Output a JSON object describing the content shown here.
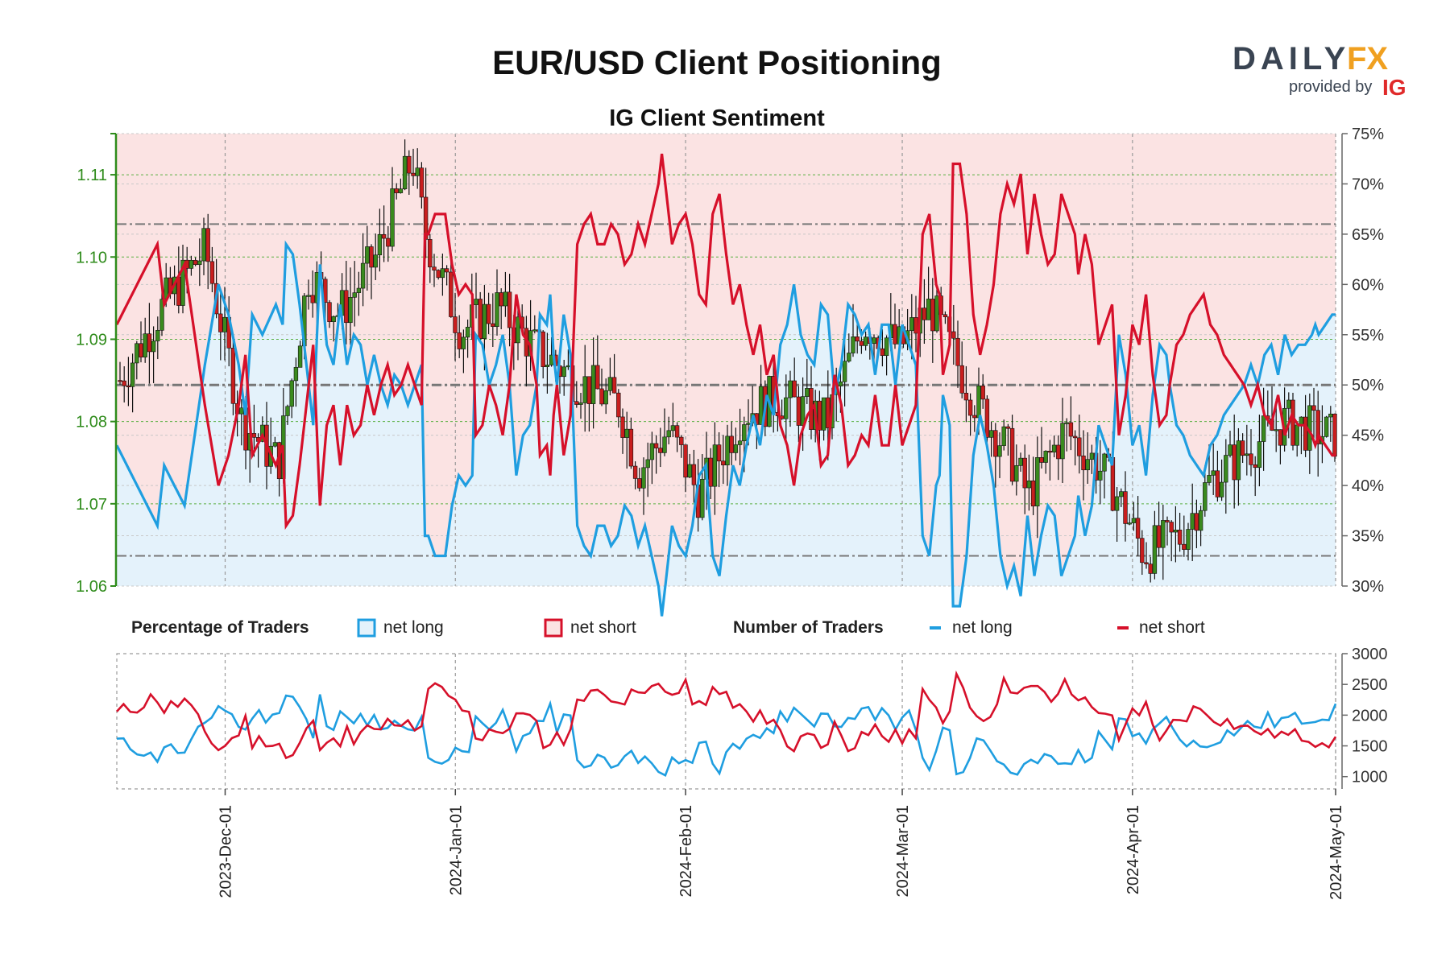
{
  "title": "EUR/USD Client Positioning",
  "subtitle": "IG Client Sentiment",
  "brand": {
    "logo_left": "DAILY",
    "logo_right": "FX",
    "provided_by": "provided by",
    "ig": "IG",
    "color_dark": "#3a4452",
    "color_accent": "#f0a020",
    "color_ig": "#e02a2a"
  },
  "legend": {
    "pct_title": "Percentage of Traders",
    "pct_long": "net long",
    "pct_short": "net short",
    "num_title": "Number of Traders",
    "num_long": "net long",
    "num_short": "net short"
  },
  "colors": {
    "long": "#1f9ee0",
    "short": "#d6102a",
    "long_fill": "#e4f2fb",
    "short_fill": "#fbe3e3",
    "bull": "#3a8a1e",
    "bear": "#c81e1e",
    "price_axis": "#2e8b1a",
    "grid": "#9a9a9a"
  },
  "chart_data": {
    "type": "candlestick+line",
    "x_ticks": [
      "2023-Dec-01",
      "2024-Jan-01",
      "2024-Feb-01",
      "2024-Mar-01",
      "2024-Apr-01",
      "2024-May-01"
    ],
    "price_axis": {
      "ticks": [
        "1.06",
        "1.07",
        "1.08",
        "1.09",
        "1.10",
        "1.11"
      ],
      "range": [
        1.06,
        1.115
      ]
    },
    "pct_axis": {
      "ticks": [
        "30%",
        "35%",
        "40%",
        "45%",
        "50%",
        "55%",
        "60%",
        "65%",
        "70%",
        "75%"
      ],
      "range": [
        30,
        75
      ]
    },
    "count_axis": {
      "ticks": [
        "1000",
        "1500",
        "2000",
        "2500",
        "3000"
      ],
      "range": [
        800,
        3000
      ]
    },
    "reference_lines_pct": [
      66,
      50,
      33
    ],
    "series": {
      "long_pct_nodes": [
        [
          0,
          44
        ],
        [
          12,
          36
        ],
        [
          14,
          42
        ],
        [
          20,
          38
        ],
        [
          26,
          52
        ],
        [
          30,
          60
        ],
        [
          33,
          57
        ],
        [
          36,
          52
        ],
        [
          38,
          47
        ],
        [
          40,
          57
        ],
        [
          43,
          55
        ],
        [
          47,
          58
        ],
        [
          49,
          56
        ],
        [
          50,
          64
        ],
        [
          52,
          63
        ],
        [
          54,
          58
        ],
        [
          56,
          52
        ],
        [
          58,
          46
        ],
        [
          60,
          62
        ],
        [
          62,
          54
        ],
        [
          64,
          52
        ],
        [
          66,
          58
        ],
        [
          68,
          52
        ],
        [
          70,
          55
        ],
        [
          72,
          54
        ],
        [
          74,
          50
        ],
        [
          76,
          53
        ],
        [
          78,
          50
        ],
        [
          80,
          48
        ],
        [
          82,
          51
        ],
        [
          84,
          50
        ],
        [
          86,
          48
        ],
        [
          88,
          50
        ],
        [
          90,
          52
        ],
        [
          91,
          35
        ],
        [
          92,
          35
        ],
        [
          94,
          33
        ],
        [
          97,
          33
        ],
        [
          99,
          38
        ],
        [
          101,
          41
        ],
        [
          103,
          40
        ],
        [
          105,
          41
        ],
        [
          106,
          55
        ],
        [
          108,
          54
        ],
        [
          110,
          50
        ],
        [
          112,
          52
        ],
        [
          114,
          55
        ],
        [
          116,
          50
        ],
        [
          118,
          41
        ],
        [
          120,
          45
        ],
        [
          122,
          46
        ],
        [
          124,
          50
        ],
        [
          125,
          57
        ],
        [
          127,
          56
        ],
        [
          128,
          59
        ],
        [
          129,
          53
        ],
        [
          130,
          50
        ],
        [
          132,
          57
        ],
        [
          134,
          53
        ],
        [
          136,
          36
        ],
        [
          138,
          34
        ],
        [
          140,
          33
        ],
        [
          142,
          36
        ],
        [
          144,
          36
        ],
        [
          146,
          34
        ],
        [
          148,
          35
        ],
        [
          150,
          38
        ],
        [
          152,
          37
        ],
        [
          154,
          34
        ],
        [
          156,
          36
        ],
        [
          158,
          33
        ],
        [
          160,
          30
        ],
        [
          161,
          27
        ],
        [
          164,
          36
        ],
        [
          166,
          34
        ],
        [
          168,
          33
        ],
        [
          170,
          36
        ],
        [
          172,
          41
        ],
        [
          174,
          42
        ],
        [
          176,
          33
        ],
        [
          178,
          31
        ],
        [
          180,
          37
        ],
        [
          182,
          42
        ],
        [
          184,
          40
        ],
        [
          186,
          44
        ],
        [
          188,
          47
        ],
        [
          190,
          44
        ],
        [
          192,
          49
        ],
        [
          194,
          47
        ],
        [
          196,
          54
        ],
        [
          198,
          56
        ],
        [
          200,
          60
        ],
        [
          202,
          55
        ],
        [
          204,
          53
        ],
        [
          206,
          52
        ],
        [
          208,
          58
        ],
        [
          210,
          57
        ],
        [
          212,
          49
        ],
        [
          214,
          52
        ],
        [
          216,
          58
        ],
        [
          218,
          57
        ],
        [
          220,
          55
        ],
        [
          222,
          56
        ],
        [
          224,
          51
        ],
        [
          226,
          56
        ],
        [
          228,
          56
        ],
        [
          230,
          50
        ],
        [
          232,
          56
        ],
        [
          234,
          54
        ],
        [
          236,
          52
        ],
        [
          238,
          35
        ],
        [
          240,
          33
        ],
        [
          242,
          40
        ],
        [
          243,
          41
        ],
        [
          244,
          49
        ],
        [
          246,
          46
        ],
        [
          247,
          28
        ],
        [
          249,
          28
        ],
        [
          251,
          33
        ],
        [
          253,
          43
        ],
        [
          255,
          47
        ],
        [
          257,
          44
        ],
        [
          259,
          40
        ],
        [
          261,
          33
        ],
        [
          263,
          30
        ],
        [
          265,
          32
        ],
        [
          267,
          29
        ],
        [
          269,
          37
        ],
        [
          271,
          31
        ],
        [
          273,
          35
        ],
        [
          275,
          38
        ],
        [
          277,
          37
        ],
        [
          279,
          31
        ],
        [
          281,
          33
        ],
        [
          283,
          35
        ],
        [
          284,
          39
        ],
        [
          286,
          35
        ],
        [
          288,
          38
        ],
        [
          290,
          46
        ],
        [
          292,
          44
        ],
        [
          294,
          42
        ],
        [
          296,
          55
        ],
        [
          298,
          51
        ],
        [
          300,
          44
        ],
        [
          302,
          46
        ],
        [
          304,
          41
        ],
        [
          306,
          49
        ],
        [
          308,
          54
        ],
        [
          310,
          53
        ],
        [
          311,
          50
        ],
        [
          313,
          46
        ],
        [
          315,
          45
        ],
        [
          317,
          43
        ],
        [
          319,
          42
        ],
        [
          321,
          41
        ],
        [
          323,
          44
        ],
        [
          325,
          45
        ],
        [
          327,
          47
        ],
        [
          329,
          48
        ],
        [
          331,
          49
        ],
        [
          333,
          50
        ],
        [
          335,
          52
        ],
        [
          337,
          50
        ],
        [
          339,
          53
        ],
        [
          341,
          54
        ],
        [
          343,
          51
        ],
        [
          345,
          55
        ],
        [
          347,
          53
        ],
        [
          349,
          54
        ],
        [
          351,
          54
        ],
        [
          353,
          55
        ],
        [
          354,
          56
        ],
        [
          355,
          55
        ],
        [
          357,
          56
        ],
        [
          359,
          57
        ]
      ]
    }
  }
}
